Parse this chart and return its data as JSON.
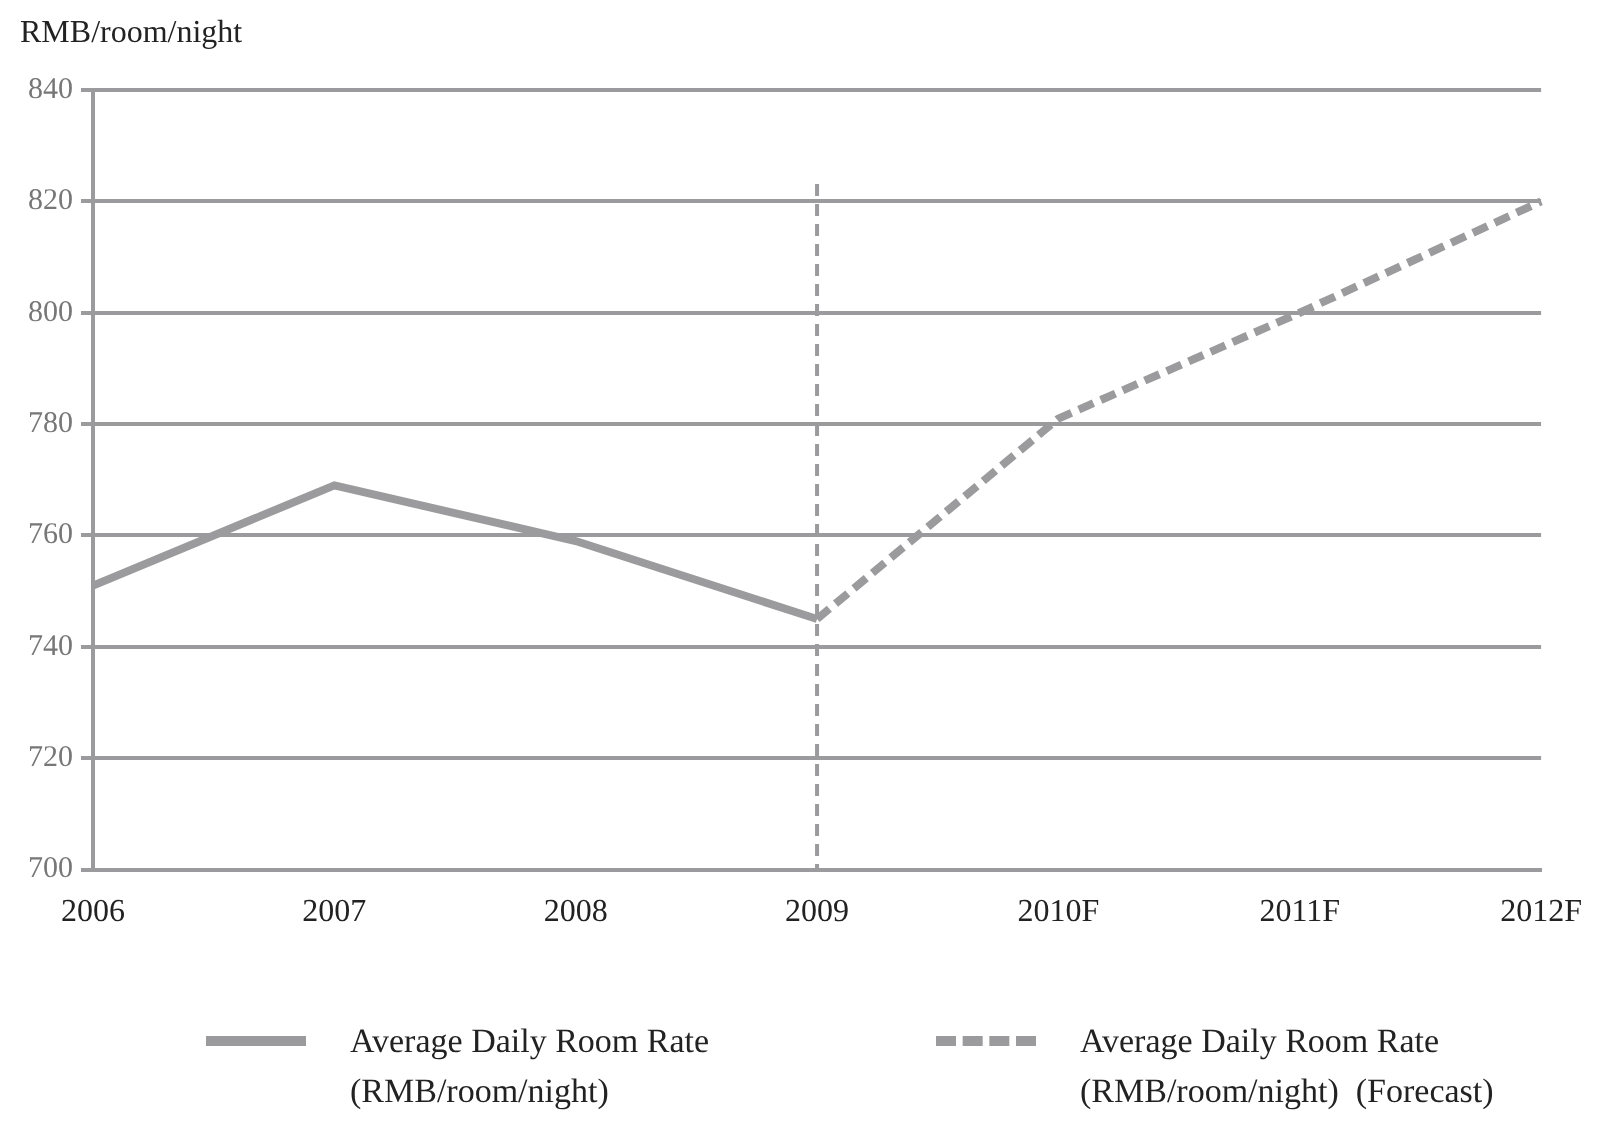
{
  "chart_data": {
    "type": "line",
    "ylabel": "RMB/room/night",
    "categories": [
      "2006",
      "2007",
      "2008",
      "2009",
      "2010F",
      "2011F",
      "2012F"
    ],
    "series": [
      {
        "name": "Average Daily Room Rate (RMB/room/night)",
        "color": "#9b9b9d",
        "line_style": "solid",
        "values": [
          751,
          769,
          759,
          745,
          null,
          null,
          null
        ]
      },
      {
        "name": "Average Daily Room Rate (RMB/room/night)  (Forecast)",
        "color": "#9b9b9d",
        "line_style": "dashed",
        "values": [
          null,
          null,
          null,
          745,
          781,
          800,
          820
        ]
      }
    ],
    "ylim": [
      700,
      840
    ],
    "yticks": [
      700,
      720,
      740,
      760,
      780,
      800,
      820,
      840
    ],
    "grid": "y",
    "legend": "bottom",
    "marker": "none",
    "ref_lines": [
      {
        "axis": "x",
        "value": "2009",
        "color": "#9b9b9d",
        "line_style": "dashed"
      }
    ]
  }
}
